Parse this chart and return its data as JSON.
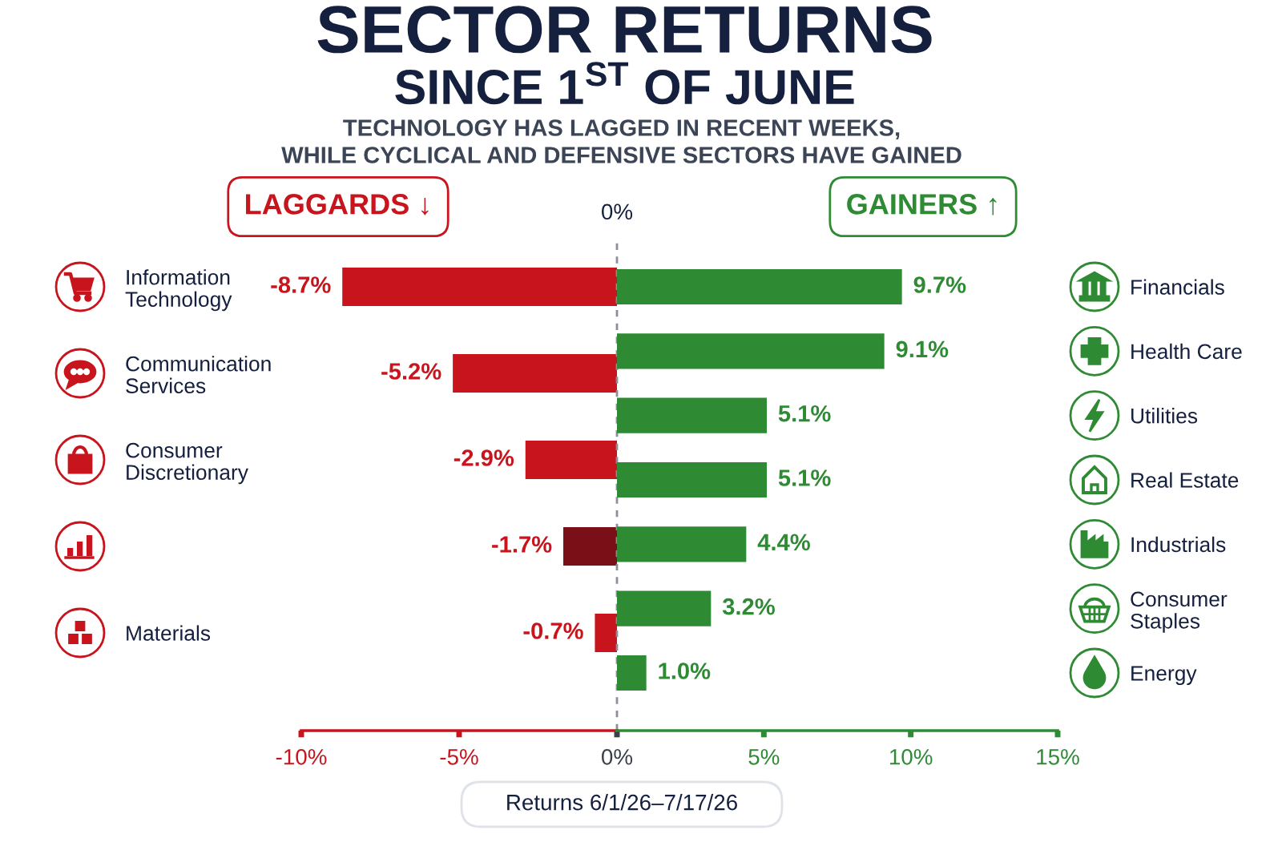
{
  "chart_data": [
    {
      "type": "bar",
      "orientation": "horizontal",
      "title": "SECTOR RETURNS\nSINCE 1$^{ST}$ OF JUNE",
      "subtitle": "TECHNOLOGY HAS LAGGED IN RECENT WEEKS,\nWHILE CYCLICAL AND DEFENSIVE SECTORS HAVE GAINED",
      "categories": [
        "Information\nTechnology",
        "Communication\nServices",
        "Consumer\nDiscretionary",
        null,
        "Materials"
      ],
      "values": [
        -8.7,
        -5.2,
        -2.9,
        -1.7,
        -0.7
      ],
      "value_labels": [
        "-8.7%",
        "-5.2%",
        "-2.9%",
        "-1.7%",
        "-0.7%"
      ],
      "colors": [
        "#c8141c",
        "#c8141c",
        "#c8141c",
        "#7a0f17",
        "#c8141c"
      ],
      "xlim": [
        -10,
        0
      ],
      "xticks": [
        {
          "value": -10,
          "label": "-10%"
        },
        {
          "value": -5,
          "label": "-5%"
        },
        {
          "value": 0,
          "label": "0%"
        }
      ],
      "ref_lines": [
        {
          "axis": "x",
          "value": 0,
          "label": "0%",
          "line_style": "dashed",
          "color": "#8a8f99"
        }
      ],
      "annotations": [
        "LAGGARDS ↓",
        "Returns 6/1/26–7/17/26"
      ]
    },
    {
      "type": "bar",
      "orientation": "horizontal",
      "categories": [
        "Financials",
        "Health Care",
        "Utilities",
        "Real Estate",
        "Industrials",
        "Consumer\nStaples",
        "Energy"
      ],
      "values": [
        9.7,
        9.1,
        5.1,
        5.1,
        4.4,
        3.2,
        1.0
      ],
      "value_labels": [
        "9.7%",
        "9.1%",
        "5.1%",
        "5.1%",
        "4.4%",
        "3.2%",
        "1.0%"
      ],
      "colors": [
        "#2e8b34",
        "#2e8b34",
        "#2e8b34",
        "#2e8b34",
        "#2e8b34",
        "#2e8b34",
        "#2e8b34"
      ],
      "xlim": [
        0,
        15
      ],
      "xticks": [
        {
          "value": 5,
          "label": "5%"
        },
        {
          "value": 10,
          "label": "10%"
        },
        {
          "value": 15,
          "label": "15%"
        }
      ],
      "annotations": [
        "GAINERS ↑"
      ]
    }
  ]
}
